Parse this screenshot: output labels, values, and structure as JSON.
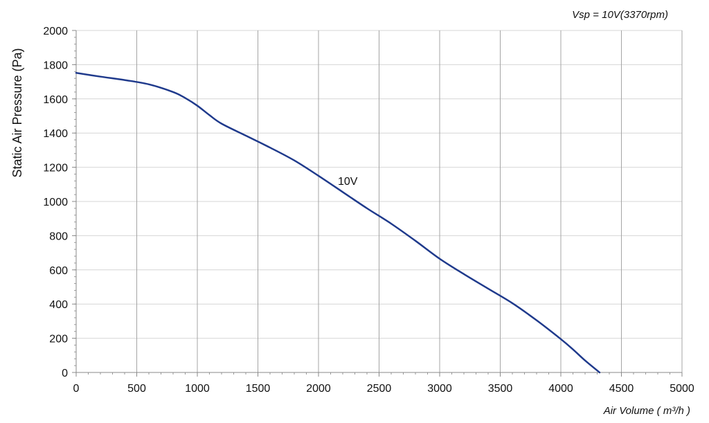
{
  "chart_data": {
    "type": "line",
    "subtitle": "Vsp = 10V(3370rpm)",
    "xlabel": "Air Volume ( m³/h )",
    "ylabel": "Static Air Pressure  (Pa)",
    "xlim": [
      0,
      5000
    ],
    "ylim": [
      0,
      2000
    ],
    "x_ticks": [
      "0",
      "500",
      "1000",
      "1500",
      "2000",
      "2500",
      "3000",
      "3500",
      "4000",
      "4500",
      "5000"
    ],
    "y_ticks": [
      "0",
      "200",
      "400",
      "600",
      "800",
      "1000",
      "1200",
      "1400",
      "1600",
      "1800",
      "2000"
    ],
    "grid": true,
    "series": [
      {
        "name": "10V",
        "color": "#1f3a8c",
        "x": [
          0,
          200,
          400,
          600,
          800,
          900,
          1000,
          1100,
          1200,
          1400,
          1600,
          1800,
          2000,
          2200,
          2400,
          2600,
          2800,
          3000,
          3200,
          3400,
          3600,
          3800,
          4000,
          4100,
          4200,
          4320
        ],
        "y": [
          1752,
          1730,
          1710,
          1685,
          1640,
          1605,
          1560,
          1505,
          1455,
          1385,
          1315,
          1240,
          1150,
          1055,
          960,
          870,
          770,
          665,
          575,
          490,
          405,
          305,
          195,
          135,
          70,
          0
        ]
      }
    ]
  }
}
